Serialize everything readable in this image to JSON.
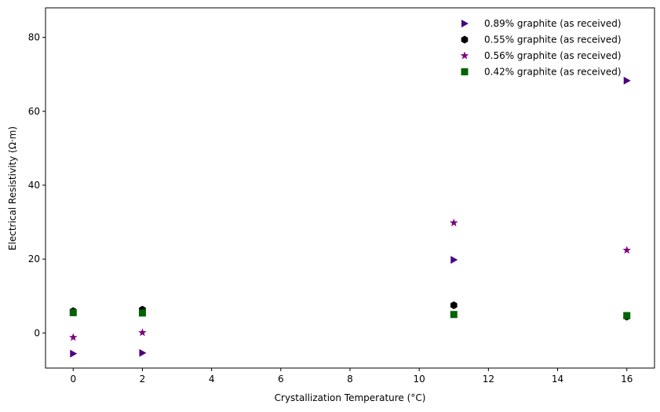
{
  "chart_data": {
    "type": "scatter",
    "title": "",
    "xlabel": "Crystallization Temperature (°C)",
    "ylabel": "Electrical Resistivity (Ω·m)",
    "xlim": [
      -0.8,
      16.8
    ],
    "ylim": [
      -9.5,
      88
    ],
    "xticks": [
      0,
      2,
      4,
      6,
      8,
      10,
      12,
      14,
      16
    ],
    "yticks": [
      0,
      20,
      40,
      60,
      80
    ],
    "grid": false,
    "legend_position": "top-right",
    "series": [
      {
        "name": "0.89% graphite (as received)",
        "marker": "triangle-right",
        "color": "#4b0082",
        "x": [
          0,
          2,
          11,
          16
        ],
        "y": [
          -5.6,
          -5.4,
          19.8,
          68.3
        ]
      },
      {
        "name": "0.55% graphite (as received)",
        "marker": "hexagon",
        "color": "#000000",
        "x": [
          0,
          2,
          11,
          16
        ],
        "y": [
          5.9,
          6.3,
          7.5,
          4.4
        ]
      },
      {
        "name": "0.56% graphite (as received)",
        "marker": "star",
        "color": "#800080",
        "x": [
          0,
          2,
          11,
          16
        ],
        "y": [
          -1.2,
          0.1,
          29.8,
          22.4
        ]
      },
      {
        "name": "0.42% graphite (as received)",
        "marker": "square",
        "color": "#006400",
        "x": [
          0,
          2,
          11,
          16
        ],
        "y": [
          5.5,
          5.4,
          5.0,
          4.7
        ]
      }
    ]
  }
}
